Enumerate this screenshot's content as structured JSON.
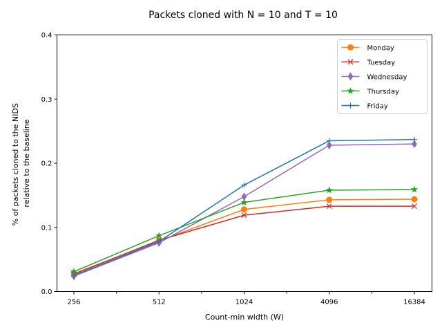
{
  "chart_data": {
    "type": "line",
    "title": "Packets cloned with N = 10 and T = 10",
    "xlabel": "Count-min width (W)",
    "ylabel_lines": [
      "% of packets cloned to the NIDS",
      "relative to the baseline"
    ],
    "categories": [
      "256",
      "512",
      "1024",
      "4096",
      "16384"
    ],
    "yticks": [
      "0.0",
      "0.1",
      "0.2",
      "0.3",
      "0.4"
    ],
    "ylim": [
      0,
      0.4
    ],
    "legend_position": "upper right",
    "grid": false,
    "series": [
      {
        "name": "Monday",
        "color": "#ff7f0e",
        "marker": "circle",
        "values": [
          0.028,
          0.079,
          0.128,
          0.143,
          0.144
        ]
      },
      {
        "name": "Tuesday",
        "color": "#d62728",
        "marker": "x",
        "values": [
          0.027,
          0.08,
          0.119,
          0.133,
          0.133
        ]
      },
      {
        "name": "Wednesday",
        "color": "#9467bd",
        "marker": "diamond",
        "values": [
          0.024,
          0.076,
          0.148,
          0.228,
          0.23
        ]
      },
      {
        "name": "Thursday",
        "color": "#2ca02c",
        "marker": "star",
        "values": [
          0.031,
          0.087,
          0.139,
          0.158,
          0.159
        ]
      },
      {
        "name": "Friday",
        "color": "#1f77b4",
        "marker": "plus",
        "values": [
          0.025,
          0.078,
          0.166,
          0.235,
          0.237
        ]
      }
    ]
  }
}
